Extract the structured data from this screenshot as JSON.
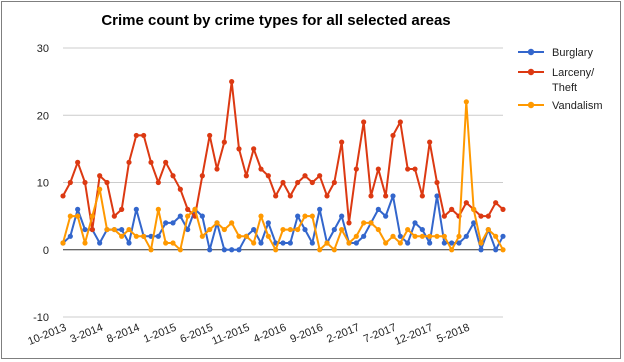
{
  "chart_data": {
    "type": "line",
    "title": "Crime count by crime types for all selected areas",
    "xlabel": "",
    "ylabel": "",
    "ylim": [
      -10,
      30
    ],
    "yticks": [
      -10,
      0,
      10,
      20,
      30
    ],
    "grid": true,
    "legend_position": "right",
    "x_tick_labels": [
      "10-2013",
      "3-2014",
      "8-2014",
      "1-2015",
      "6-2015",
      "11-2015",
      "4-2016",
      "9-2016",
      "2-2017",
      "7-2017",
      "12-2017",
      "5-2018"
    ],
    "x": [
      "10-2013",
      "11-2013",
      "12-2013",
      "1-2014",
      "2-2014",
      "3-2014",
      "4-2014",
      "5-2014",
      "6-2014",
      "7-2014",
      "8-2014",
      "9-2014",
      "10-2014",
      "11-2014",
      "12-2014",
      "1-2015",
      "2-2015",
      "3-2015",
      "4-2015",
      "5-2015",
      "6-2015",
      "7-2015",
      "8-2015",
      "9-2015",
      "10-2015",
      "11-2015",
      "12-2015",
      "1-2016",
      "2-2016",
      "3-2016",
      "4-2016",
      "5-2016",
      "6-2016",
      "7-2016",
      "8-2016",
      "9-2016",
      "10-2016",
      "11-2016",
      "12-2016",
      "1-2017",
      "2-2017",
      "3-2017",
      "4-2017",
      "5-2017",
      "6-2017",
      "7-2017",
      "8-2017",
      "9-2017",
      "10-2017",
      "11-2017",
      "12-2017",
      "1-2018",
      "2-2018",
      "3-2018",
      "4-2018",
      "5-2018",
      "6-2018",
      "7-2018",
      "8-2018",
      "9-2018",
      "10-2018"
    ],
    "series": [
      {
        "name": "Burglary",
        "color": "#3366cc",
        "values": [
          1,
          2,
          6,
          3,
          3,
          1,
          3,
          3,
          3,
          1,
          6,
          2,
          2,
          2,
          4,
          4,
          5,
          3,
          6,
          5,
          0,
          4,
          0,
          0,
          0,
          2,
          3,
          1,
          4,
          1,
          1,
          1,
          5,
          3,
          1,
          6,
          1,
          3,
          5,
          1,
          1,
          2,
          4,
          6,
          5,
          8,
          2,
          1,
          4,
          3,
          1,
          8,
          1,
          1,
          1,
          2,
          4,
          0,
          3,
          0,
          2
        ]
      },
      {
        "name": "Larceny/ Theft",
        "color": "#dc3912",
        "values": [
          8,
          10,
          13,
          10,
          3,
          11,
          10,
          5,
          6,
          13,
          17,
          17,
          13,
          10,
          13,
          11,
          9,
          6,
          5,
          11,
          17,
          12,
          16,
          25,
          15,
          11,
          15,
          12,
          11,
          8,
          10,
          8,
          10,
          11,
          10,
          11,
          8,
          10,
          16,
          4,
          12,
          19,
          8,
          12,
          8,
          17,
          19,
          12,
          12,
          8,
          16,
          10,
          5,
          6,
          5,
          7,
          6,
          5,
          5,
          7,
          6
        ]
      },
      {
        "name": "Vandalism",
        "color": "#ff9900",
        "values": [
          1,
          5,
          5,
          1,
          5,
          9,
          3,
          3,
          2,
          3,
          2,
          2,
          0,
          6,
          1,
          1,
          0,
          5,
          6,
          2,
          3,
          4,
          3,
          4,
          2,
          2,
          1,
          5,
          2,
          0,
          3,
          3,
          3,
          5,
          5,
          0,
          1,
          0,
          3,
          1,
          2,
          4,
          4,
          3,
          1,
          2,
          1,
          3,
          2,
          2,
          2,
          2,
          2,
          0,
          2,
          22,
          6,
          1,
          3,
          2,
          0
        ]
      }
    ]
  }
}
